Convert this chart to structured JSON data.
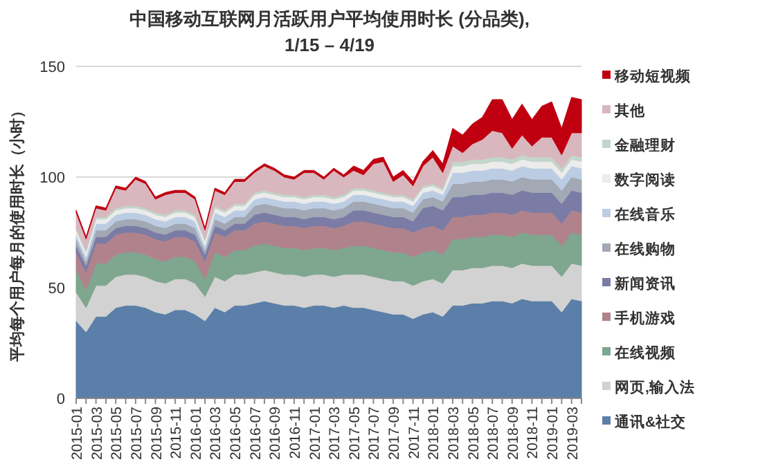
{
  "chart_data": {
    "type": "area",
    "stacked": true,
    "title": "中国移动互联网月活跃用户平均使用时长 (分品类),\n1/15 – 4/19",
    "ylabel": "平均每个用户每月的使用时长（小时）",
    "categories": [
      "2015-01",
      null,
      "2015-03",
      null,
      "2015-05",
      null,
      "2015-07",
      null,
      "2015-09",
      null,
      "2015-11",
      null,
      "2016-01",
      null,
      "2016-03",
      null,
      "2016-05",
      null,
      "2016-07",
      null,
      "2016-09",
      null,
      "2016-11",
      null,
      "2017-01",
      null,
      "2017-03",
      null,
      "2017-05",
      null,
      "2017-07",
      null,
      "2017-09",
      null,
      "2017-11",
      null,
      "2018-01",
      null,
      "2018-03",
      null,
      "2018-05",
      null,
      "2018-07",
      null,
      "2018-09",
      null,
      "2018-11",
      null,
      "2019-01",
      null,
      "2019-03",
      null
    ],
    "ylim": [
      0,
      150
    ],
    "yticks": [
      0,
      50,
      100,
      150
    ],
    "grid": "y",
    "legend": "right",
    "series": [
      {
        "name": "通讯&社交",
        "color": "#5b7fa8",
        "values": [
          35,
          30,
          37,
          37,
          41,
          42,
          42,
          41,
          39,
          38,
          40,
          40,
          38,
          35,
          41,
          39,
          42,
          42,
          43,
          44,
          43,
          42,
          42,
          41,
          42,
          42,
          41,
          42,
          41,
          41,
          40,
          39,
          38,
          38,
          36,
          38,
          39,
          37,
          42,
          42,
          43,
          43,
          44,
          44,
          43,
          45,
          44,
          44,
          44,
          39,
          45,
          44
        ]
      },
      {
        "name": "网页,输入法",
        "color": "#d2d2d2",
        "values": [
          13,
          11,
          14,
          14,
          14,
          14,
          14,
          14,
          14,
          14,
          14,
          14,
          14,
          11,
          14,
          14,
          14,
          14,
          14,
          14,
          14,
          14,
          14,
          14,
          14,
          14,
          14,
          14,
          15,
          15,
          15,
          15,
          15,
          15,
          15,
          15,
          15,
          15,
          16,
          16,
          16,
          16,
          16,
          16,
          16,
          16,
          16,
          16,
          16,
          16,
          16,
          16
        ]
      },
      {
        "name": "在线视频",
        "color": "#7fa68f",
        "values": [
          10,
          8,
          10,
          10,
          10,
          10,
          10,
          10,
          10,
          10,
          10,
          10,
          10,
          8,
          11,
          11,
          11,
          11,
          12,
          12,
          12,
          12,
          12,
          12,
          12,
          12,
          12,
          12,
          13,
          13,
          13,
          13,
          13,
          13,
          13,
          13,
          13,
          13,
          14,
          14,
          14,
          14,
          14,
          14,
          14,
          14,
          14,
          14,
          14,
          14,
          14,
          14
        ]
      },
      {
        "name": "手机游戏",
        "color": "#b0838c",
        "values": [
          8,
          8,
          9,
          9,
          9,
          9,
          9,
          9,
          9,
          9,
          9,
          9,
          9,
          8,
          9,
          9,
          9,
          9,
          10,
          10,
          10,
          10,
          10,
          10,
          10,
          10,
          10,
          10,
          11,
          11,
          11,
          11,
          11,
          11,
          11,
          11,
          11,
          11,
          10,
          10,
          10,
          10,
          10,
          10,
          10,
          10,
          10,
          10,
          10,
          10,
          10,
          10
        ]
      },
      {
        "name": "新闻资讯",
        "color": "#7a7ca6",
        "values": [
          3,
          3,
          3,
          3,
          3,
          3,
          3,
          3,
          3,
          3,
          3,
          3,
          3,
          3,
          3,
          3,
          3,
          3,
          4,
          4,
          4,
          4,
          4,
          4,
          4,
          4,
          4,
          4,
          5,
          5,
          5,
          5,
          5,
          5,
          5,
          9,
          9,
          9,
          9,
          9,
          9,
          9,
          9,
          9,
          9,
          9,
          9,
          9,
          9,
          9,
          9,
          9
        ]
      },
      {
        "name": "在线购物",
        "color": "#a2a8b4",
        "values": [
          3,
          2,
          3,
          3,
          3,
          3,
          3,
          3,
          3,
          3,
          3,
          3,
          3,
          2,
          3,
          3,
          3,
          3,
          4,
          4,
          4,
          4,
          4,
          4,
          4,
          4,
          4,
          4,
          4,
          4,
          4,
          4,
          4,
          4,
          4,
          4,
          4,
          4,
          6,
          6,
          6,
          6,
          6,
          6,
          6,
          6,
          6,
          6,
          6,
          6,
          6,
          6
        ]
      },
      {
        "name": "在线音乐",
        "color": "#bccde3",
        "values": [
          2,
          2,
          3,
          3,
          3,
          3,
          3,
          3,
          3,
          3,
          3,
          3,
          3,
          2,
          3,
          3,
          3,
          3,
          3,
          3,
          3,
          3,
          3,
          3,
          3,
          3,
          3,
          3,
          3,
          3,
          3,
          3,
          3,
          3,
          3,
          3,
          3,
          3,
          5,
          5,
          5,
          5,
          5,
          5,
          5,
          5,
          5,
          5,
          5,
          5,
          5,
          5
        ]
      },
      {
        "name": "数字阅读",
        "color": "#ececec",
        "values": [
          2,
          2,
          2,
          2,
          2,
          2,
          2,
          2,
          2,
          2,
          2,
          2,
          2,
          2,
          2,
          2,
          2,
          2,
          2,
          2,
          2,
          2,
          2,
          2,
          2,
          2,
          2,
          2,
          2,
          2,
          2,
          2,
          2,
          2,
          2,
          2,
          2,
          2,
          3,
          3,
          3,
          3,
          3,
          3,
          3,
          3,
          3,
          3,
          3,
          3,
          3,
          3
        ]
      },
      {
        "name": "金融理财",
        "color": "#c3d6cb",
        "values": [
          1,
          1,
          1,
          1,
          1,
          1,
          1,
          1,
          1,
          1,
          1,
          1,
          1,
          1,
          1,
          1,
          1,
          1,
          1,
          1,
          1,
          1,
          1,
          1,
          1,
          1,
          1,
          1,
          1,
          1,
          1,
          1,
          1,
          1,
          1,
          1,
          1,
          1,
          2,
          2,
          2,
          2,
          2,
          2,
          2,
          2,
          2,
          2,
          2,
          2,
          2,
          2
        ]
      },
      {
        "name": "其他",
        "color": "#d9b7be",
        "values": [
          7,
          5,
          4,
          3,
          9,
          7,
          12,
          11,
          6,
          9,
          8,
          8,
          7,
          4,
          7,
          7,
          10,
          10,
          9,
          11,
          10,
          8,
          7,
          11,
          10,
          7,
          12,
          8,
          8,
          6,
          12,
          14,
          6,
          9,
          6,
          9,
          12,
          7,
          7,
          4,
          7,
          9,
          12,
          11,
          5,
          9,
          5,
          9,
          9,
          6,
          10,
          11
        ]
      },
      {
        "name": "移动短视频",
        "color": "#c00010",
        "values": [
          1,
          1,
          1,
          1,
          1,
          1,
          1,
          1,
          1,
          1,
          1,
          1,
          1,
          1,
          1,
          1,
          1,
          1,
          1,
          1,
          1,
          1,
          1,
          1,
          1,
          1,
          1,
          1,
          2,
          2,
          2,
          2,
          2,
          2,
          2,
          2,
          3,
          4,
          8,
          8,
          9,
          10,
          14,
          15,
          13,
          14,
          12,
          14,
          16,
          12,
          16,
          15
        ]
      }
    ]
  }
}
